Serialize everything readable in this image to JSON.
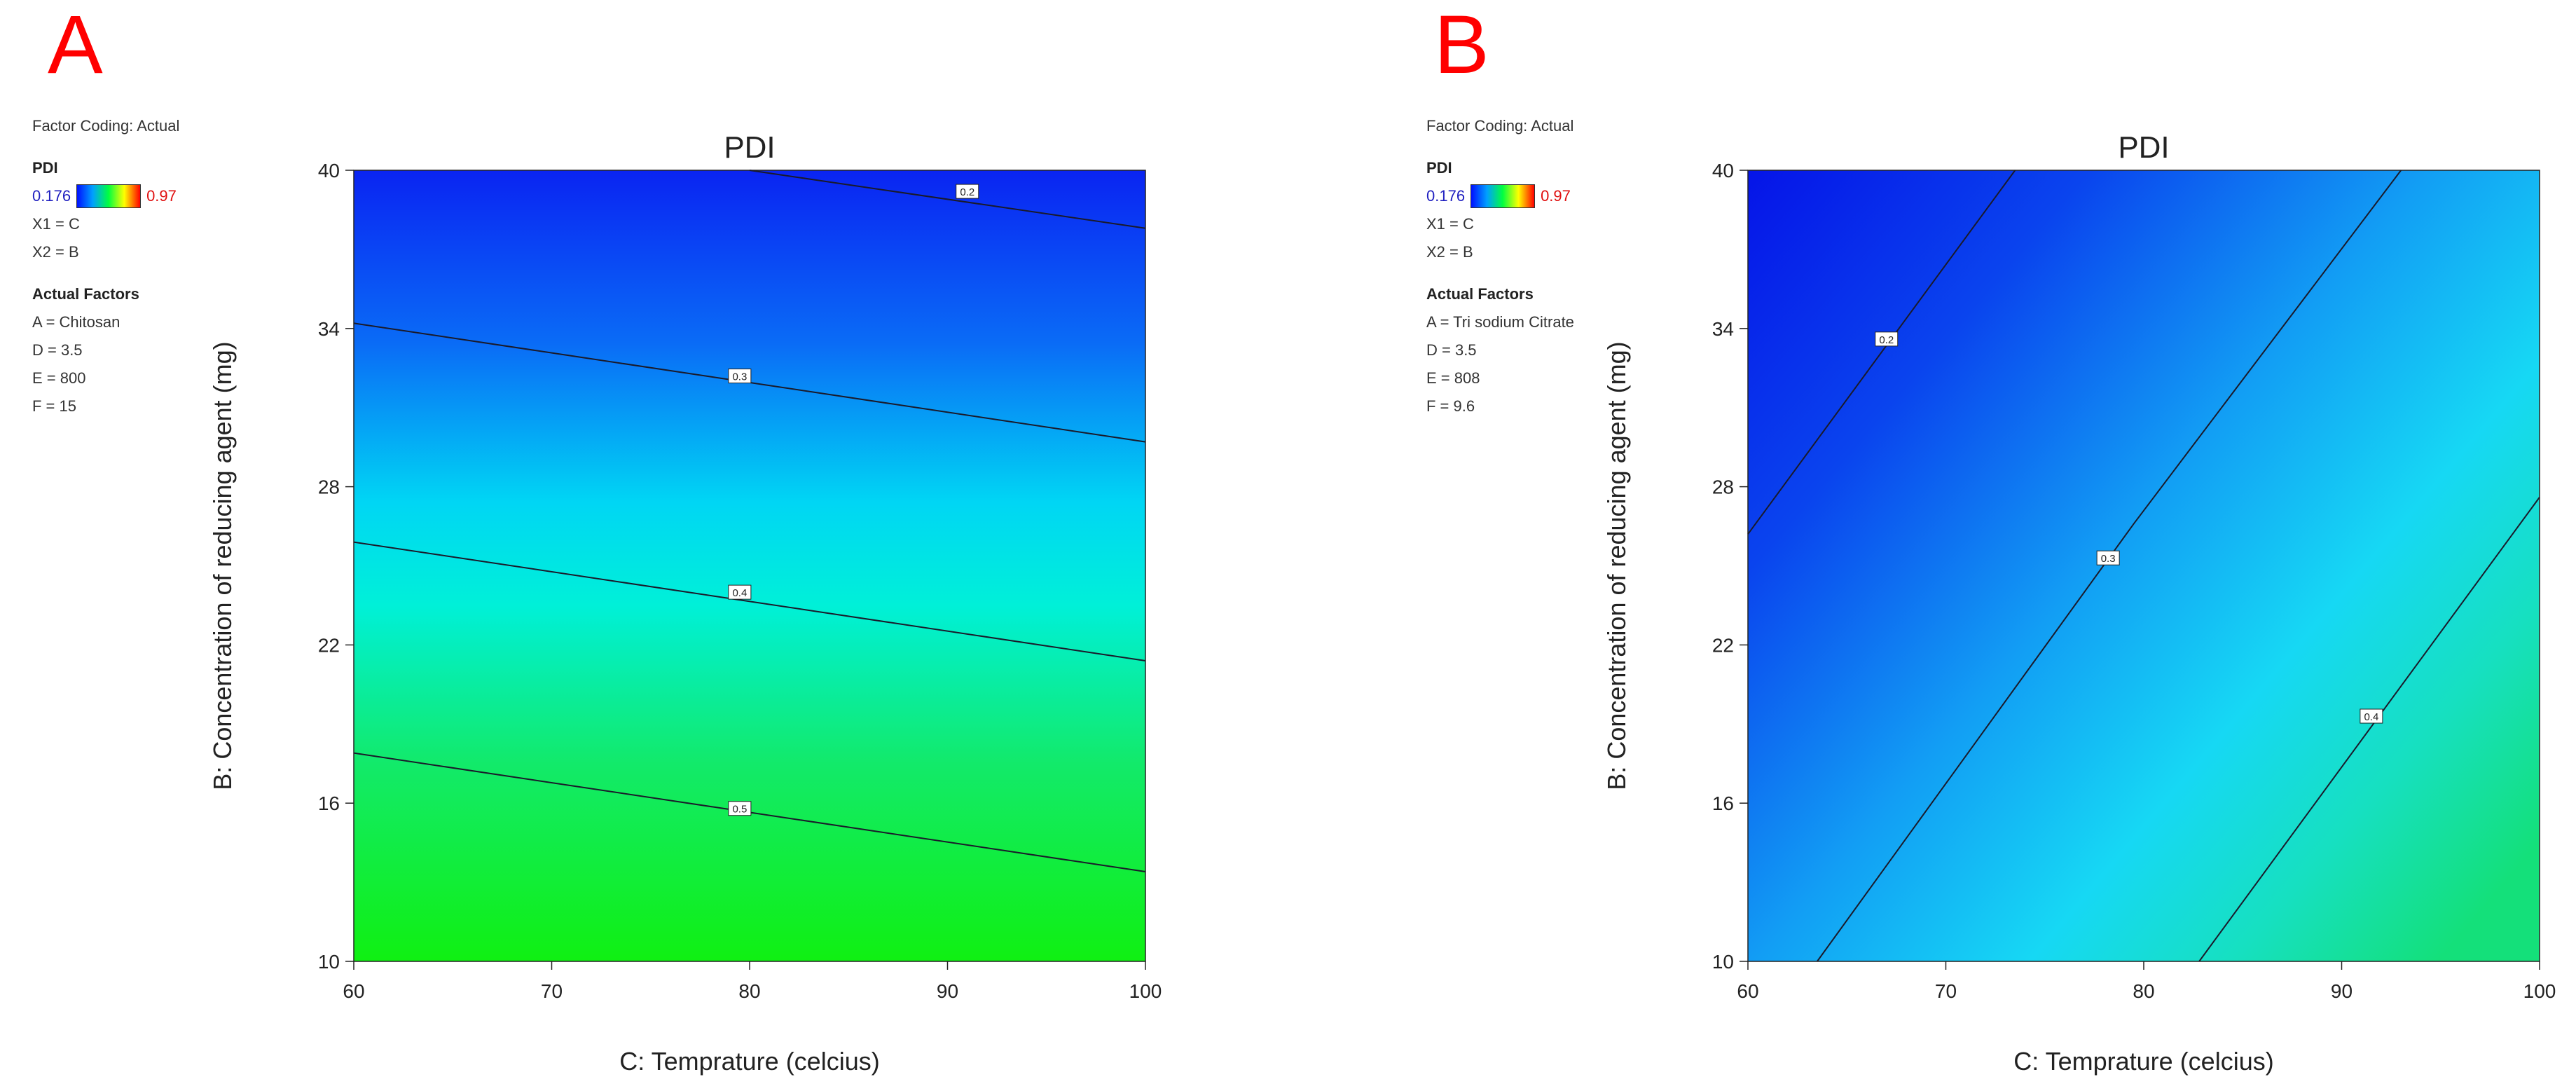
{
  "chart_data": [
    {
      "type": "contour",
      "panel_label": "A",
      "title": "PDI",
      "xlabel": "C: Temprature (celcius)",
      "ylabel": "B: Concentration of reducing agent (mg)",
      "xlim": [
        60,
        100
      ],
      "ylim": [
        10,
        40
      ],
      "xticks": [
        60,
        70,
        80,
        90,
        100
      ],
      "yticks": [
        10,
        16,
        22,
        28,
        34,
        40
      ],
      "contours": [
        {
          "label": "0.2",
          "points": [
            [
              80,
              40
            ],
            [
              100,
              37.8
            ]
          ],
          "label_at": [
            91,
            39.2
          ]
        },
        {
          "label": "0.3",
          "points": [
            [
              60,
              34.2
            ],
            [
              100,
              29.7
            ]
          ],
          "label_at": [
            79.5,
            32.2
          ]
        },
        {
          "label": "0.4",
          "points": [
            [
              60,
              25.9
            ],
            [
              100,
              21.4
            ]
          ],
          "label_at": [
            79.5,
            24.0
          ]
        },
        {
          "label": "0.5",
          "points": [
            [
              60,
              17.9
            ],
            [
              100,
              13.4
            ]
          ],
          "label_at": [
            79.5,
            15.8
          ]
        }
      ],
      "factor_coding": "Factor Coding: Actual",
      "response": "PDI",
      "legend_min": "0.176",
      "legend_max": "0.97",
      "x1": "X1 = C",
      "x2": "X2 = B",
      "actual_factors_title": "Actual Factors",
      "actual_factors": [
        "A = Chitosan",
        "D = 3.5",
        "E = 800",
        "F = 15"
      ],
      "colors": {
        "top": "#0a2cf5",
        "mid": "#00f0f0",
        "bottom": "#10f010"
      }
    },
    {
      "type": "contour",
      "panel_label": "B",
      "title": "PDI",
      "xlabel": "C: Temprature (celcius)",
      "ylabel": "B: Concentration of reducing agent (mg)",
      "xlim": [
        60,
        100
      ],
      "ylim": [
        10,
        40
      ],
      "xticks": [
        60,
        70,
        80,
        90,
        100
      ],
      "yticks": [
        10,
        16,
        22,
        28,
        34,
        40
      ],
      "contours": [
        {
          "label": "0.2",
          "points": [
            [
              60,
              26.2
            ],
            [
              73.5,
              40
            ]
          ],
          "label_at": [
            67.0,
            33.6
          ]
        },
        {
          "label": "0.3",
          "points": [
            [
              63.5,
              10
            ],
            [
              79.5,
              26.6
            ],
            [
              93.0,
              40
            ]
          ],
          "label_at": [
            78.2,
            25.3
          ]
        },
        {
          "label": "0.4",
          "points": [
            [
              82.8,
              10
            ],
            [
              100,
              27.6
            ]
          ],
          "label_at": [
            91.5,
            19.3
          ]
        }
      ],
      "factor_coding": "Factor Coding: Actual",
      "response": "PDI",
      "legend_min": "0.176",
      "legend_max": "0.97",
      "x1": "X1 = C",
      "x2": "X2 = B",
      "actual_factors_title": "Actual Factors",
      "actual_factors": [
        "A = Tri sodium Citrate",
        "D = 3.5",
        "E = 808",
        "F = 9.6"
      ],
      "colors": {
        "top_left": "#0a1aea",
        "mid": "#14b4f4",
        "bottom_right": "#15e38a"
      }
    }
  ]
}
